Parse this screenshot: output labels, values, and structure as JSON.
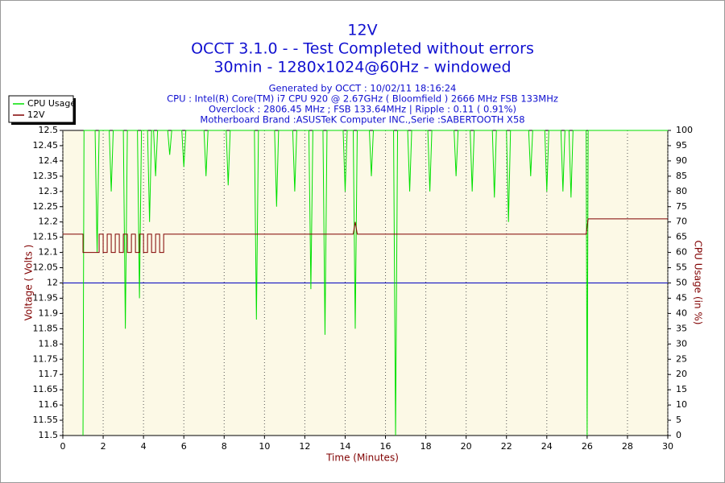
{
  "chart_data": {
    "type": "line",
    "title": "12V",
    "title_lines": [
      "OCCT 3.1.0 -  - Test Completed without errors",
      "30min - 1280x1024@60Hz - windowed"
    ],
    "subtitle_lines": [
      "Generated by OCCT : 10/02/11 18:16:24",
      "CPU : Intel(R) Core(TM) i7 CPU 920 @ 2.67GHz ( Bloomfield ) 2666 MHz FSB 133MHz",
      "Overclock : 2806.45 MHz ; FSB 133.64MHz | Ripple : 0.11 ( 0.91%)",
      "Motherboard Brand :ASUSTeK Computer INC.,Serie :SABERTOOTH X58"
    ],
    "xlabel": "Time (Minutes)",
    "ylabel": "Voltage ( Volts )",
    "y2label": "CPU Usage (in %)",
    "xlim": [
      0,
      30
    ],
    "xticks": [
      0,
      2,
      4,
      6,
      8,
      10,
      12,
      14,
      16,
      18,
      20,
      22,
      24,
      26,
      28,
      30
    ],
    "ylim": [
      11.5,
      12.5
    ],
    "yticks": [
      11.5,
      11.55,
      11.6,
      11.65,
      11.7,
      11.75,
      11.8,
      11.85,
      11.9,
      11.95,
      12,
      12.05,
      12.1,
      12.15,
      12.2,
      12.25,
      12.3,
      12.35,
      12.4,
      12.45,
      12.5
    ],
    "y2lim": [
      0,
      100
    ],
    "y2ticks": [
      0,
      5,
      10,
      15,
      20,
      25,
      30,
      35,
      40,
      45,
      50,
      55,
      60,
      65,
      70,
      75,
      80,
      85,
      90,
      95,
      100
    ],
    "reference_line": 12,
    "reference_color": "#0000c0",
    "grid": true,
    "legend": "top-left",
    "series": [
      {
        "name": "CPU Usage",
        "color": "#00e000",
        "axis": "y2",
        "x": [
          1,
          1.05,
          1.6,
          1.7,
          1.8,
          2.3,
          2.4,
          2.5,
          3.0,
          3.1,
          3.2,
          3.7,
          3.8,
          3.9,
          4.2,
          4.3,
          4.4,
          4.5,
          4.6,
          4.7,
          5.2,
          5.3,
          5.4,
          5.9,
          6.0,
          6.1,
          7.0,
          7.1,
          7.2,
          8.1,
          8.2,
          8.3,
          9.5,
          9.6,
          9.7,
          10.5,
          10.6,
          10.7,
          11.4,
          11.5,
          11.6,
          12.2,
          12.3,
          12.4,
          12.9,
          13.0,
          13.1,
          13.9,
          14.0,
          14.1,
          14.4,
          14.5,
          14.6,
          15.2,
          15.3,
          15.4,
          16.4,
          16.5,
          16.6,
          17.1,
          17.2,
          17.3,
          18.1,
          18.2,
          18.3,
          19.4,
          19.5,
          19.6,
          20.2,
          20.3,
          20.4,
          21.3,
          21.4,
          21.5,
          22.0,
          22.1,
          22.2,
          23.1,
          23.2,
          23.3,
          23.9,
          24.0,
          24.1,
          24.7,
          24.8,
          24.9,
          25.1,
          25.2,
          25.3,
          25.95,
          26.0,
          26.05,
          30
        ],
        "values": [
          0,
          100,
          100,
          60,
          100,
          100,
          80,
          100,
          100,
          35,
          100,
          100,
          45,
          100,
          100,
          70,
          100,
          100,
          85,
          100,
          100,
          92,
          100,
          100,
          88,
          100,
          100,
          85,
          100,
          100,
          82,
          100,
          100,
          38,
          100,
          100,
          75,
          100,
          100,
          80,
          100,
          100,
          48,
          100,
          100,
          33,
          100,
          100,
          80,
          100,
          100,
          35,
          100,
          100,
          85,
          100,
          100,
          0,
          100,
          100,
          80,
          100,
          100,
          80,
          100,
          100,
          85,
          100,
          100,
          80,
          100,
          100,
          78,
          100,
          100,
          70,
          100,
          100,
          85,
          100,
          100,
          80,
          100,
          100,
          80,
          100,
          100,
          78,
          100,
          100,
          0,
          100,
          100
        ]
      },
      {
        "name": "12V",
        "color": "#800000",
        "x": [
          0,
          1,
          1,
          1.8,
          1.8,
          2.0,
          2.0,
          2.2,
          2.2,
          2.4,
          2.4,
          2.6,
          2.6,
          2.8,
          2.8,
          3.0,
          3.0,
          3.2,
          3.2,
          3.4,
          3.4,
          3.6,
          3.6,
          3.8,
          3.8,
          4.0,
          4.0,
          4.2,
          4.2,
          4.4,
          4.4,
          4.6,
          4.6,
          4.8,
          4.8,
          5.0,
          5.0,
          14.4,
          14.5,
          14.6,
          25.95,
          26.05,
          30
        ],
        "values": [
          12.16,
          12.16,
          12.1,
          12.1,
          12.16,
          12.16,
          12.1,
          12.1,
          12.16,
          12.16,
          12.1,
          12.1,
          12.16,
          12.16,
          12.1,
          12.1,
          12.16,
          12.16,
          12.1,
          12.1,
          12.16,
          12.16,
          12.1,
          12.1,
          12.16,
          12.16,
          12.1,
          12.1,
          12.16,
          12.16,
          12.1,
          12.1,
          12.16,
          12.16,
          12.1,
          12.1,
          12.16,
          12.16,
          12.2,
          12.16,
          12.16,
          12.21,
          12.21
        ]
      }
    ]
  }
}
